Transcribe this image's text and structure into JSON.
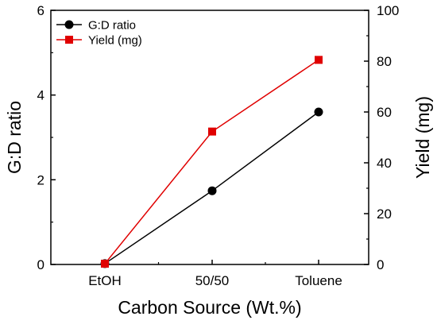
{
  "chart_data": {
    "type": "line",
    "categories": [
      "EtOH",
      "50/50",
      "Toluene"
    ],
    "xlabel": "Carbon Source (Wt.%)",
    "ylabel_left": "G:D ratio",
    "ylabel_right": "Yield (mg)",
    "ylim_left": [
      0,
      6
    ],
    "ylim_right": [
      0,
      100
    ],
    "yticks_left": [
      "0",
      "2",
      "4",
      "6"
    ],
    "yticks_right": [
      "0",
      "20",
      "40",
      "60",
      "80",
      "100"
    ],
    "grid": false,
    "legend_position": "top-left",
    "series": [
      {
        "name": "G:D ratio",
        "axis": "left",
        "color": "#000000",
        "marker": "circle",
        "values": [
          0.02,
          1.74,
          3.6
        ]
      },
      {
        "name": "Yield (mg)",
        "axis": "right",
        "color": "#e00000",
        "marker": "square",
        "values": [
          0.3,
          52.3,
          80.5
        ]
      }
    ]
  }
}
